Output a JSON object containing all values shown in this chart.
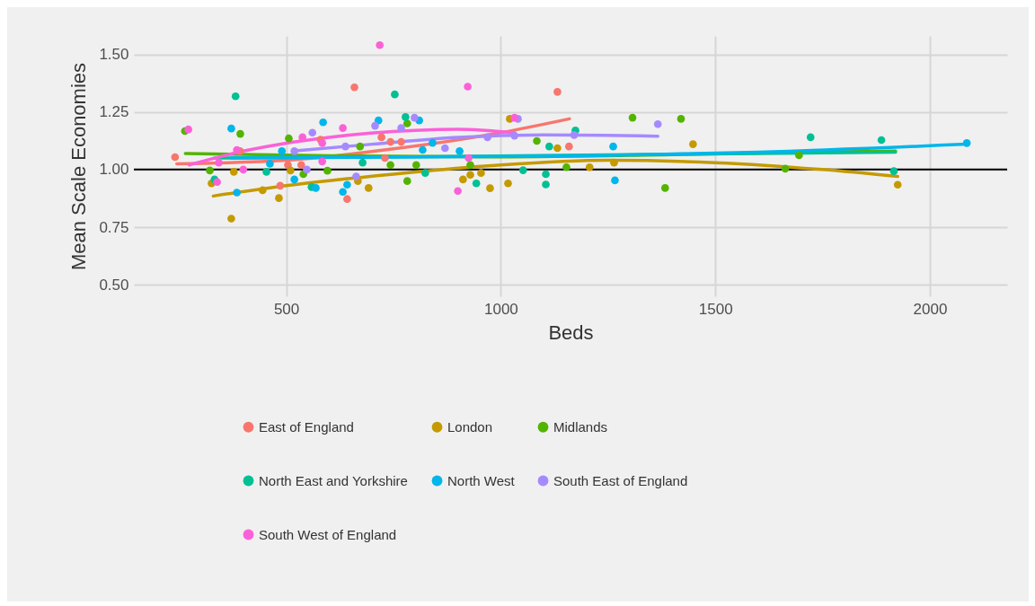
{
  "chart_data": {
    "type": "scatter",
    "xlabel": "Beds",
    "ylabel": "Mean Scale Economies",
    "xlim": [
      145,
      2180
    ],
    "ylim": [
      0.45,
      1.58
    ],
    "xticks": [
      500,
      1000,
      1500,
      2000
    ],
    "yticks": [
      {
        "value": 0.5,
        "label": "0.50"
      },
      {
        "value": 0.75,
        "label": "0.75"
      },
      {
        "value": 1,
        "label": "1.00"
      },
      {
        "value": 1.25,
        "label": "1.25"
      },
      {
        "value": 1.5,
        "label": "1.50"
      }
    ],
    "grid": true,
    "legend": "bottom",
    "marker": "circle",
    "ref_lines": [
      {
        "axis": "y",
        "value": 1,
        "color": "#000000"
      }
    ],
    "series": [
      {
        "name": "East of England",
        "color": "#F8766D",
        "x": [
          241,
          392,
          486,
          504,
          535,
          580,
          642,
          659,
          722,
          730,
          743,
          768,
          1132,
          1159
        ],
        "values": [
          1.054,
          1.08,
          0.93,
          1.02,
          1.02,
          1.13,
          0.872,
          1.357,
          1.14,
          1.05,
          1.12,
          1.12,
          1.337,
          1.1
        ]
      },
      {
        "name": "London",
        "color": "#C49A00",
        "x": [
          372,
          326,
          378,
          445,
          483,
          510,
          667,
          692,
          912,
          929,
          954,
          975,
          1017,
          1021,
          1132,
          1207,
          1264,
          1448,
          1925
        ],
        "values": [
          0.787,
          0.94,
          0.99,
          0.91,
          0.876,
          0.996,
          0.95,
          0.92,
          0.957,
          0.977,
          0.985,
          0.919,
          0.94,
          1.22,
          1.093,
          1.01,
          1.03,
          1.11,
          0.934
        ]
      },
      {
        "name": "Midlands",
        "color": "#53B400",
        "x": [
          264,
          393,
          322,
          506,
          540,
          596,
          672,
          743,
          782,
          782,
          803,
          929,
          1084,
          1153,
          1307,
          1383,
          1420,
          1663,
          1695
        ],
        "values": [
          1.167,
          1.155,
          0.996,
          1.135,
          0.98,
          0.995,
          1.1,
          1.02,
          0.95,
          1.2,
          1.02,
          1.02,
          1.124,
          1.01,
          1.225,
          0.92,
          1.22,
          1.004,
          1.062
        ]
      },
      {
        "name": "North East and Yorkshire",
        "color": "#00C094",
        "x": [
          382,
          333,
          454,
          559,
          678,
          753,
          778,
          824,
          943,
          1052,
          1105,
          1105,
          1113,
          1174,
          1722,
          1887,
          1916
        ],
        "values": [
          1.318,
          0.957,
          0.99,
          0.924,
          1.03,
          1.326,
          1.228,
          0.985,
          0.94,
          0.997,
          0.98,
          0.935,
          1.1,
          1.17,
          1.14,
          1.128,
          0.993
        ]
      },
      {
        "name": "North West",
        "color": "#00B6EB",
        "x": [
          372,
          385,
          462,
          490,
          519,
          569,
          586,
          632,
          642,
          715,
          810,
          818,
          841,
          904,
          1262,
          1266,
          2086
        ],
        "values": [
          1.178,
          0.9,
          1.025,
          1.08,
          0.957,
          0.92,
          1.205,
          0.903,
          0.934,
          1.213,
          1.213,
          1.085,
          1.116,
          1.08,
          1.1,
          0.953,
          1.115
        ]
      },
      {
        "name": "South East of England",
        "color": "#A58AFF",
        "x": [
          519,
          548,
          561,
          638,
          663,
          707,
          768,
          799,
          870,
          969,
          1032,
          1040,
          1171,
          1366
        ],
        "values": [
          1.08,
          1.0,
          1.16,
          1.1,
          0.97,
          1.19,
          1.18,
          1.225,
          1.093,
          1.14,
          1.147,
          1.22,
          1.15,
          1.197
        ]
      },
      {
        "name": "South West of England",
        "color": "#FB61D7",
        "x": [
          272,
          339,
          343,
          385,
          400,
          538,
          584,
          584,
          632,
          718,
          900,
          923,
          925,
          1032
        ],
        "values": [
          1.174,
          0.946,
          1.03,
          1.085,
          1.0,
          1.14,
          1.115,
          1.035,
          1.18,
          1.54,
          0.907,
          1.36,
          1.05,
          1.225
        ]
      },
      {
        "type": "line",
        "marker": "none",
        "color": "#F8766D",
        "x": [
          245,
          500,
          750,
          1000,
          1160
        ],
        "values": [
          1.025,
          1.04,
          1.09,
          1.16,
          1.22
        ]
      },
      {
        "type": "line",
        "marker": "none",
        "color": "#C49A00",
        "x": [
          330,
          500,
          750,
          1000,
          1250,
          1500,
          1750,
          1925
        ],
        "values": [
          0.885,
          0.93,
          0.98,
          1.02,
          1.04,
          1.03,
          1.0,
          0.97
        ]
      },
      {
        "type": "line",
        "marker": "none",
        "color": "#53B400",
        "x": [
          265,
          600,
          1000,
          1400,
          1700,
          1920
        ],
        "values": [
          1.07,
          1.06,
          1.055,
          1.065,
          1.075,
          1.08
        ]
      },
      {
        "type": "line",
        "marker": "none",
        "color": "#00C094",
        "x": [
          333,
          800,
          1300,
          1920
        ],
        "values": [
          1.05,
          1.055,
          1.065,
          1.075
        ]
      },
      {
        "type": "line",
        "marker": "none",
        "color": "#00B6EB",
        "x": [
          372,
          800,
          1200,
          1600,
          2086
        ],
        "values": [
          1.05,
          1.055,
          1.06,
          1.075,
          1.11
        ]
      },
      {
        "type": "line",
        "marker": "none",
        "color": "#A58AFF",
        "x": [
          515,
          700,
          900,
          1100,
          1366
        ],
        "values": [
          1.08,
          1.11,
          1.14,
          1.15,
          1.145
        ]
      },
      {
        "type": "line",
        "marker": "none",
        "color": "#FB61D7",
        "x": [
          274,
          400,
          600,
          800,
          900,
          1032
        ],
        "values": [
          1.02,
          1.08,
          1.14,
          1.17,
          1.175,
          1.16
        ]
      }
    ]
  }
}
